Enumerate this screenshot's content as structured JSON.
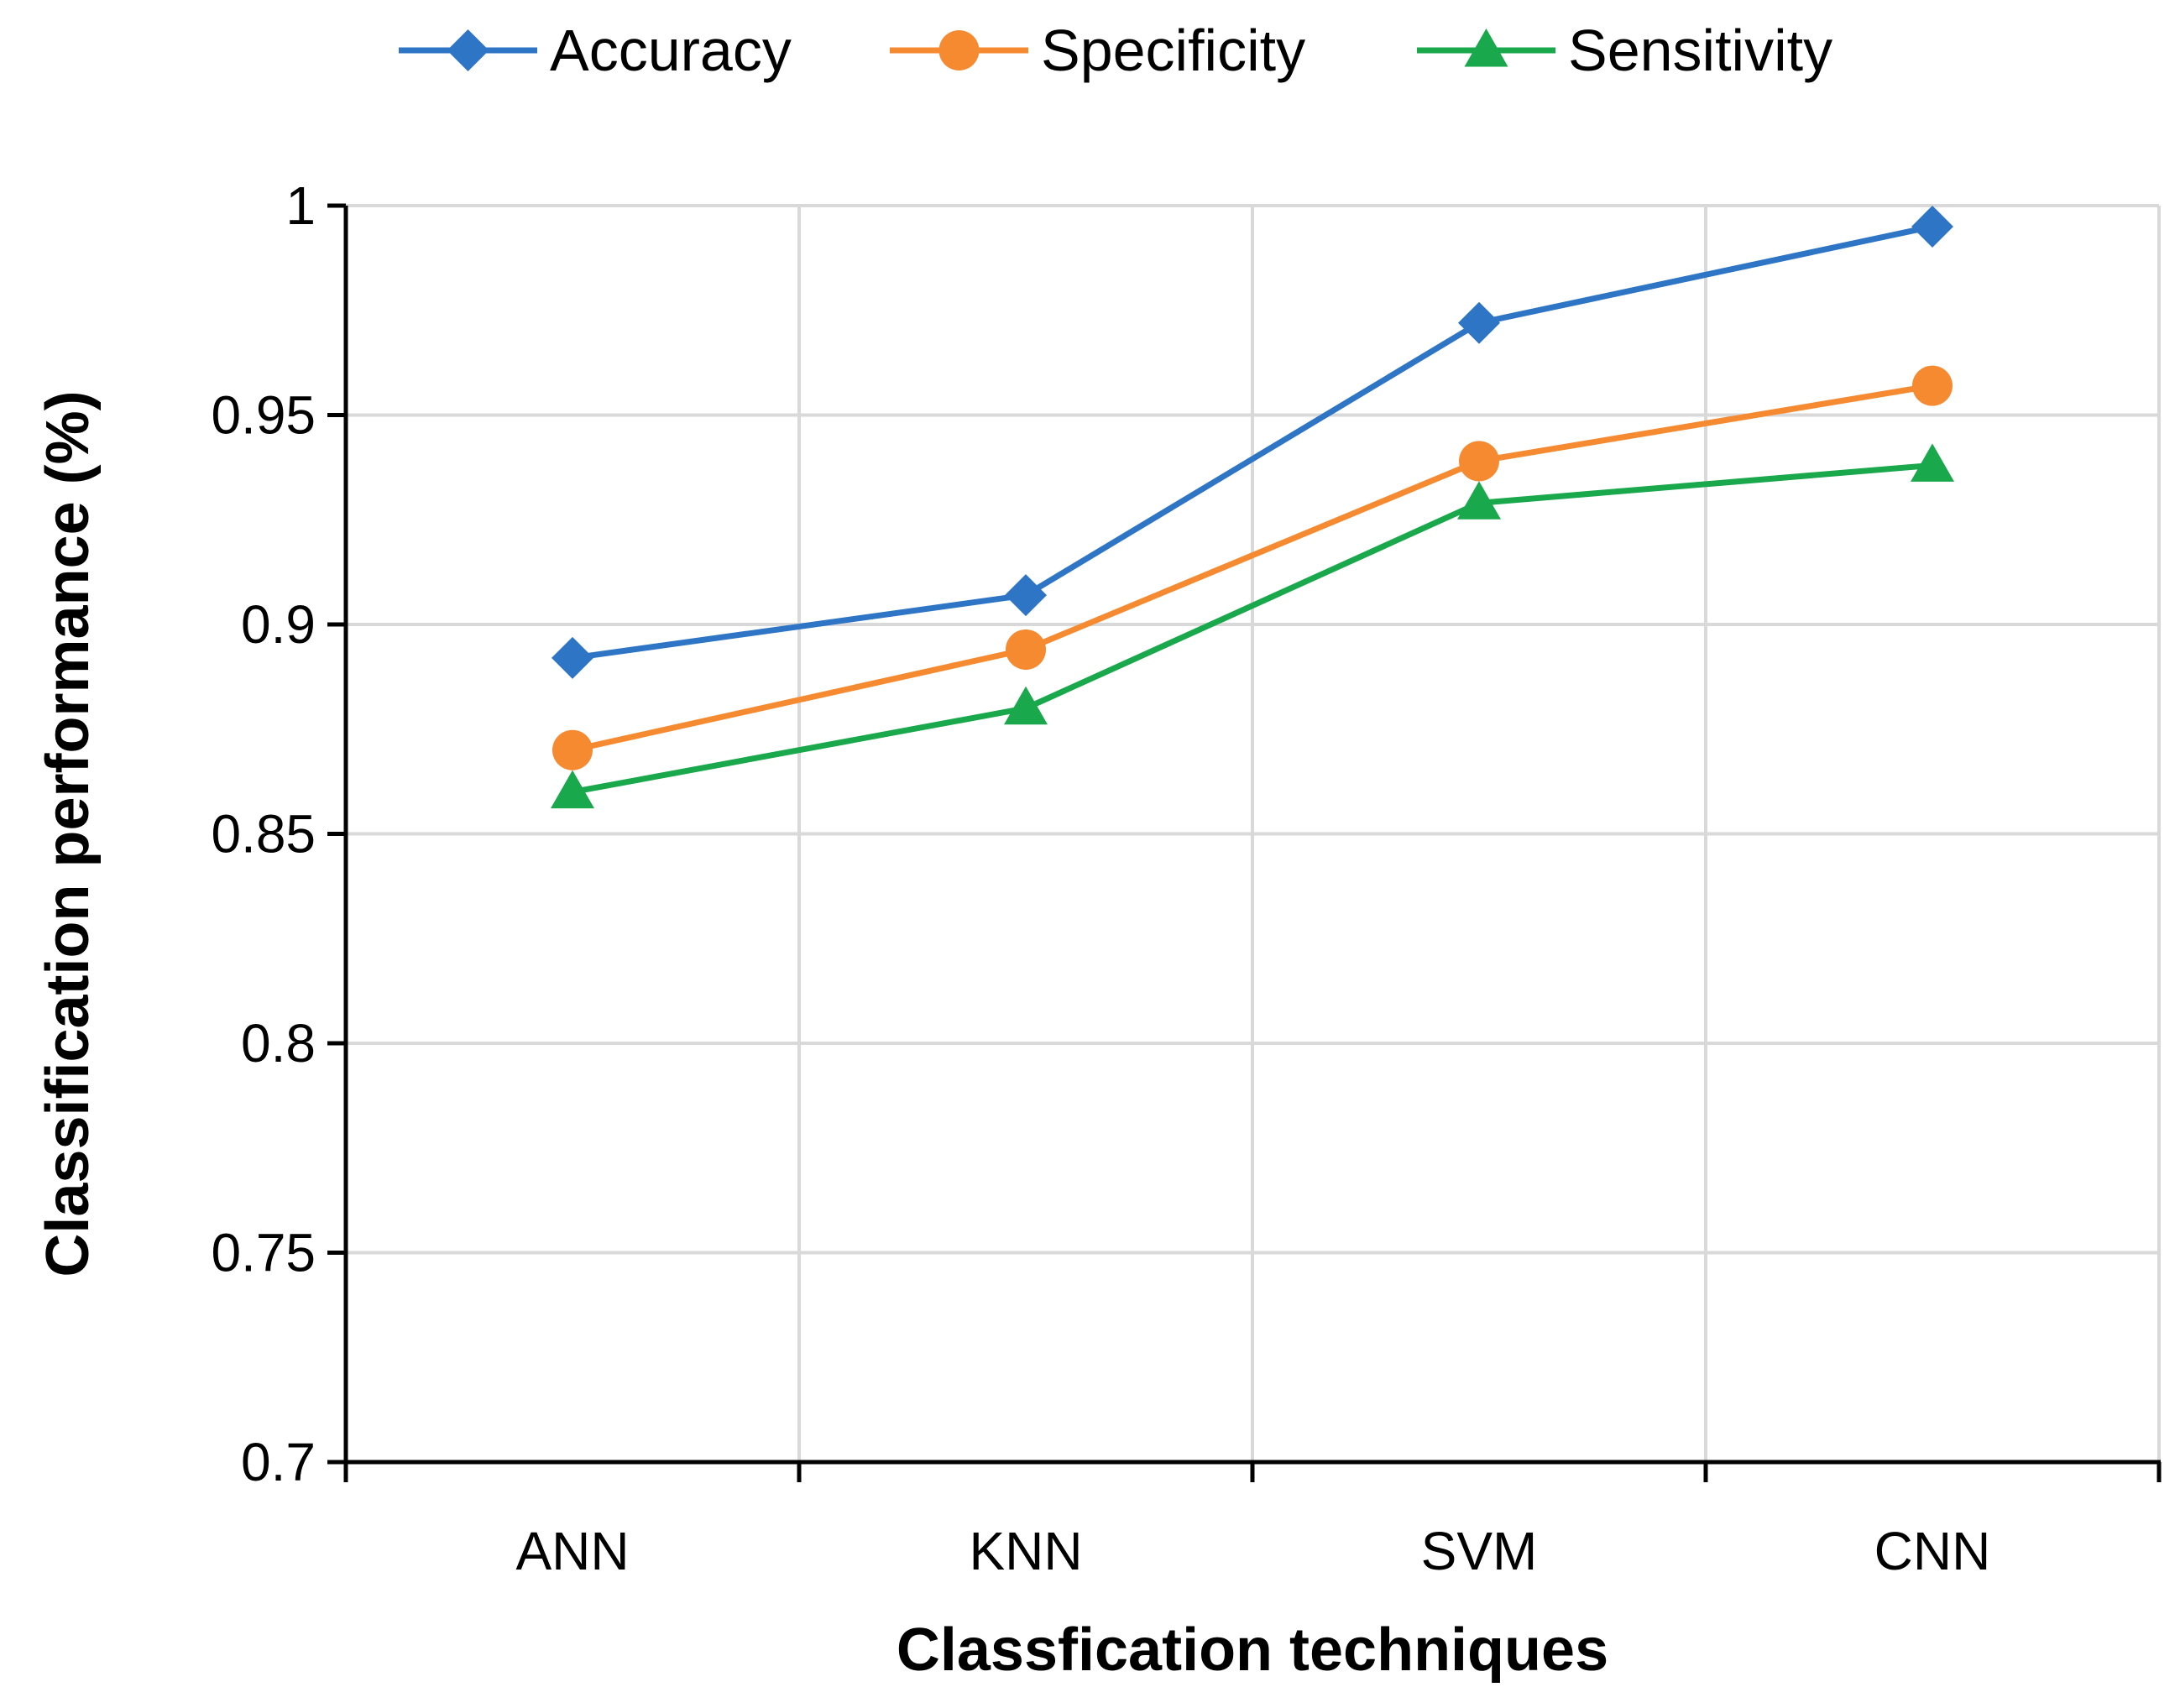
{
  "chart_data": {
    "type": "line",
    "categories": [
      "ANN",
      "KNN",
      "SVM",
      "CNN"
    ],
    "series": [
      {
        "name": "Accuracy",
        "color": "#2E75C6",
        "marker": "diamond",
        "values": [
          0.892,
          0.907,
          0.972,
          0.995
        ]
      },
      {
        "name": "Specificity",
        "color": "#F58A31",
        "marker": "circle",
        "values": [
          0.87,
          0.894,
          0.939,
          0.957
        ]
      },
      {
        "name": "Sensitivity",
        "color": "#19A84B",
        "marker": "triangle",
        "values": [
          0.86,
          0.88,
          0.929,
          0.938
        ]
      }
    ],
    "xlabel": "Classfication techniques",
    "ylabel": "Classification performance (%)",
    "ylim": [
      0.7,
      1.0
    ],
    "yticks": [
      0.7,
      0.75,
      0.8,
      0.85,
      0.9,
      0.95,
      1.0
    ],
    "ytick_labels": [
      "0.7",
      "0.75",
      "0.8",
      "0.85",
      "0.9",
      "0.95",
      "1"
    ],
    "grid": true,
    "legend_position": "top"
  }
}
